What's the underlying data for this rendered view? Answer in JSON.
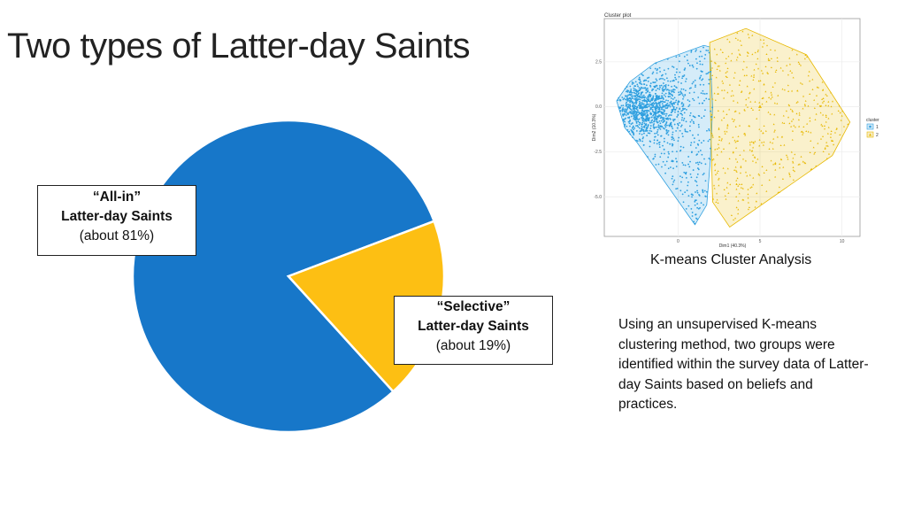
{
  "slide": {
    "title": "Two types of Latter-day Saints",
    "caption": "K-means Cluster Analysis",
    "description": "Using an unsupervised K-means clustering method, two groups were identified within the survey data of Latter-day Saints based on beliefs and practices."
  },
  "chart_data": [
    {
      "type": "pie",
      "slices": [
        {
          "quote": "“All-in”",
          "name": "Latter-day Saints",
          "note": "(about 81%)",
          "value": 81,
          "color": "#1777C9"
        },
        {
          "quote": "“Selective”",
          "name": "Latter-day Saints",
          "note": "(about 19%)",
          "value": 19,
          "color": "#FDBF13"
        }
      ]
    },
    {
      "type": "scatter",
      "title": "Cluster plot",
      "xlabel": "Dim1 (40.3%)",
      "ylabel": "Dim2 (10.3%)",
      "xlim": [
        -4.5,
        11.1
      ],
      "ylim": [
        -7.2,
        4.9
      ],
      "xticks": [
        "0",
        "5",
        "10"
      ],
      "xtick_values": [
        0,
        5,
        10
      ],
      "yticks": [
        "2.5",
        "0.0",
        "-2.5",
        "-5.0"
      ],
      "ytick_values": [
        2.5,
        0,
        -2.5,
        -5
      ],
      "grid": true,
      "legend": {
        "title": "cluster",
        "position": "right"
      },
      "series": [
        {
          "name": "1",
          "color": "#2E9FDF",
          "marker": "circle",
          "center": [
            -2.0,
            0.0
          ],
          "hull": [
            [
              -3.75,
              0.33
            ],
            [
              -2.94,
              1.39
            ],
            [
              -1.41,
              2.43
            ],
            [
              1.57,
              3.41
            ],
            [
              1.93,
              3.33
            ],
            [
              2.11,
              0
            ],
            [
              1.97,
              -2.99
            ],
            [
              1.75,
              -5.45
            ],
            [
              1.03,
              -6.55
            ],
            [
              -2.49,
              -2.0
            ],
            [
              -3.24,
              -1.18
            ]
          ]
        },
        {
          "name": "2",
          "color": "#E7B800",
          "marker": "triangle",
          "center": [
            5.0,
            0.0
          ],
          "hull": [
            [
              1.93,
              3.58
            ],
            [
              4.14,
              4.35
            ],
            [
              7.84,
              2.89
            ],
            [
              10.49,
              -0.85
            ],
            [
              9.41,
              -2.71
            ],
            [
              3.15,
              -6.68
            ],
            [
              2.11,
              -5.29
            ],
            [
              1.97,
              0
            ]
          ]
        }
      ]
    }
  ]
}
